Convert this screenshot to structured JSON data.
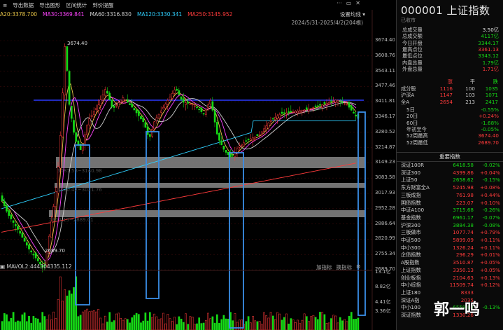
{
  "toolbar": {
    "items": [
      "导出数据",
      "导出图形",
      "区间统计",
      "到价提醒"
    ],
    "right_icons": [
      "···",
      "▭",
      "✕"
    ]
  },
  "ma_legend": {
    "ma20": "A20:3378.700",
    "ma30": "MA30:3369.841",
    "ma60": "MA60:3316.830",
    "ma120": "MA120:3330.341",
    "ma250": "MA250:3145.952",
    "settings": "设置均线 ▾",
    "colors": {
      "ma20": "#e8c547",
      "ma30": "#ff44ff",
      "ma60": "#cfcfcf",
      "ma120": "#2fd0ff",
      "ma250": "#ff3b3b"
    }
  },
  "date_range": "2024/5/31-2025/4/2(204根)",
  "price_axis": [
    "3674.40",
    "3608.76",
    "3543.11",
    "3477.46",
    "3411.81",
    "3346.17",
    "3280.52",
    "3214.87",
    "3149.23",
    "3083.58",
    "3017.93",
    "2952.28",
    "2886.64",
    "2820.99",
    "2755.34",
    "2689.70"
  ],
  "annotations": {
    "high": "3674.40",
    "low": "2689.70",
    "band1": "3087.53~3140.98",
    "band2": "3020.42~3021.76",
    "band3": "2903.15~2889.01"
  },
  "volume": {
    "legend": "MAVOL2:444304335.112",
    "buttons": [
      "加指标",
      "换指标"
    ],
    "axis": [
      "13.1亿",
      "8.82亿",
      "4.41亿",
      "3.36亿"
    ]
  },
  "stock": {
    "code": "000001",
    "name": "上证指数",
    "status": "已收市"
  },
  "quote": [
    {
      "label": "总成交量",
      "value": "3.50亿",
      "color": "white"
    },
    {
      "label": "总成交额",
      "value": "4117亿",
      "color": "green"
    },
    {
      "label": "今日开盘",
      "value": "3344.17",
      "color": "green"
    },
    {
      "label": "最高点位",
      "value": "3361.13",
      "color": "red"
    },
    {
      "label": "最低点位",
      "value": "3343.12",
      "color": "green"
    },
    {
      "label": "内盘总量",
      "value": "1.79亿",
      "color": "green"
    },
    {
      "label": "外盘总量",
      "value": "1.71亿",
      "color": "red"
    }
  ],
  "stats_header": [
    "",
    "涨",
    "平",
    "跌"
  ],
  "stats": [
    {
      "label": "成分股",
      "up": "1116",
      "flat": "100",
      "down": "1035"
    },
    {
      "label": "沪深A",
      "up": "1147",
      "flat": "103",
      "down": "1071"
    },
    {
      "label": "全A",
      "up": "2654",
      "flat": "213",
      "down": "2417"
    }
  ],
  "periods": [
    {
      "label": "5日",
      "value": "-0.55%",
      "color": "green"
    },
    {
      "label": "20日",
      "value": "+0.24%",
      "color": "red"
    },
    {
      "label": "60日",
      "value": "-1.68%",
      "color": "green"
    },
    {
      "label": "年初至今",
      "value": "-0.05%",
      "color": "green"
    },
    {
      "label": "52周最高",
      "value": "3674.40",
      "color": "red"
    },
    {
      "label": "52周最低",
      "value": "2689.70",
      "color": "red"
    }
  ],
  "indices_header": "重要指数",
  "indices": [
    {
      "name": "深证100R",
      "price": "6418.58",
      "change": "-0.02%",
      "color": "green"
    },
    {
      "name": "深证300",
      "price": "4399.86",
      "change": "+0.04%",
      "color": "red"
    },
    {
      "name": "上证50",
      "price": "2658.62",
      "change": "-0.15%",
      "color": "green"
    },
    {
      "name": "东方财富全A",
      "price": "5245.98",
      "change": "+0.08%",
      "color": "red"
    },
    {
      "name": "三板成指",
      "price": "761.98",
      "change": "+0.44%",
      "color": "red"
    },
    {
      "name": "国债指数",
      "price": "223.07",
      "change": "+0.10%",
      "color": "red"
    },
    {
      "name": "中证A100",
      "price": "3715.68",
      "change": "-0.26%",
      "color": "green"
    },
    {
      "name": "基金指数",
      "price": "6961.17",
      "change": "-0.07%",
      "color": "green"
    },
    {
      "name": "沪深300",
      "price": "3884.38",
      "change": "-0.08%",
      "color": "green"
    },
    {
      "name": "三板做市",
      "price": "1077.74",
      "change": "+0.79%",
      "color": "red"
    },
    {
      "name": "中证500",
      "price": "5899.09",
      "change": "+0.11%",
      "color": "red"
    },
    {
      "name": "中小300",
      "price": "1326.24",
      "change": "+0.11%",
      "color": "red"
    },
    {
      "name": "企债指数",
      "price": "296.29",
      "change": "+0.01%",
      "color": "red"
    },
    {
      "name": "A股指数",
      "price": "3510.87",
      "change": "+0.05%",
      "color": "red"
    },
    {
      "name": "上证指数",
      "price": "3350.13",
      "change": "+0.05%",
      "color": "red"
    },
    {
      "name": "创业板指",
      "price": "2104.63",
      "change": "+0.13%",
      "color": "red"
    },
    {
      "name": "中小综指",
      "price": "11509.74",
      "change": "+0.12%",
      "color": "red"
    },
    {
      "name": "上证180",
      "price": "8333",
      "change": "",
      "color": "red"
    },
    {
      "name": "深证A指",
      "price": "2035",
      "change": "",
      "color": "red"
    },
    {
      "name": "中小100",
      "price": "6559.83",
      "change": "-0.13%",
      "color": "green"
    },
    {
      "name": "深证指数",
      "price": "1330.26",
      "change": "",
      "color": "red"
    }
  ],
  "watermark": "郭一鸣"
}
